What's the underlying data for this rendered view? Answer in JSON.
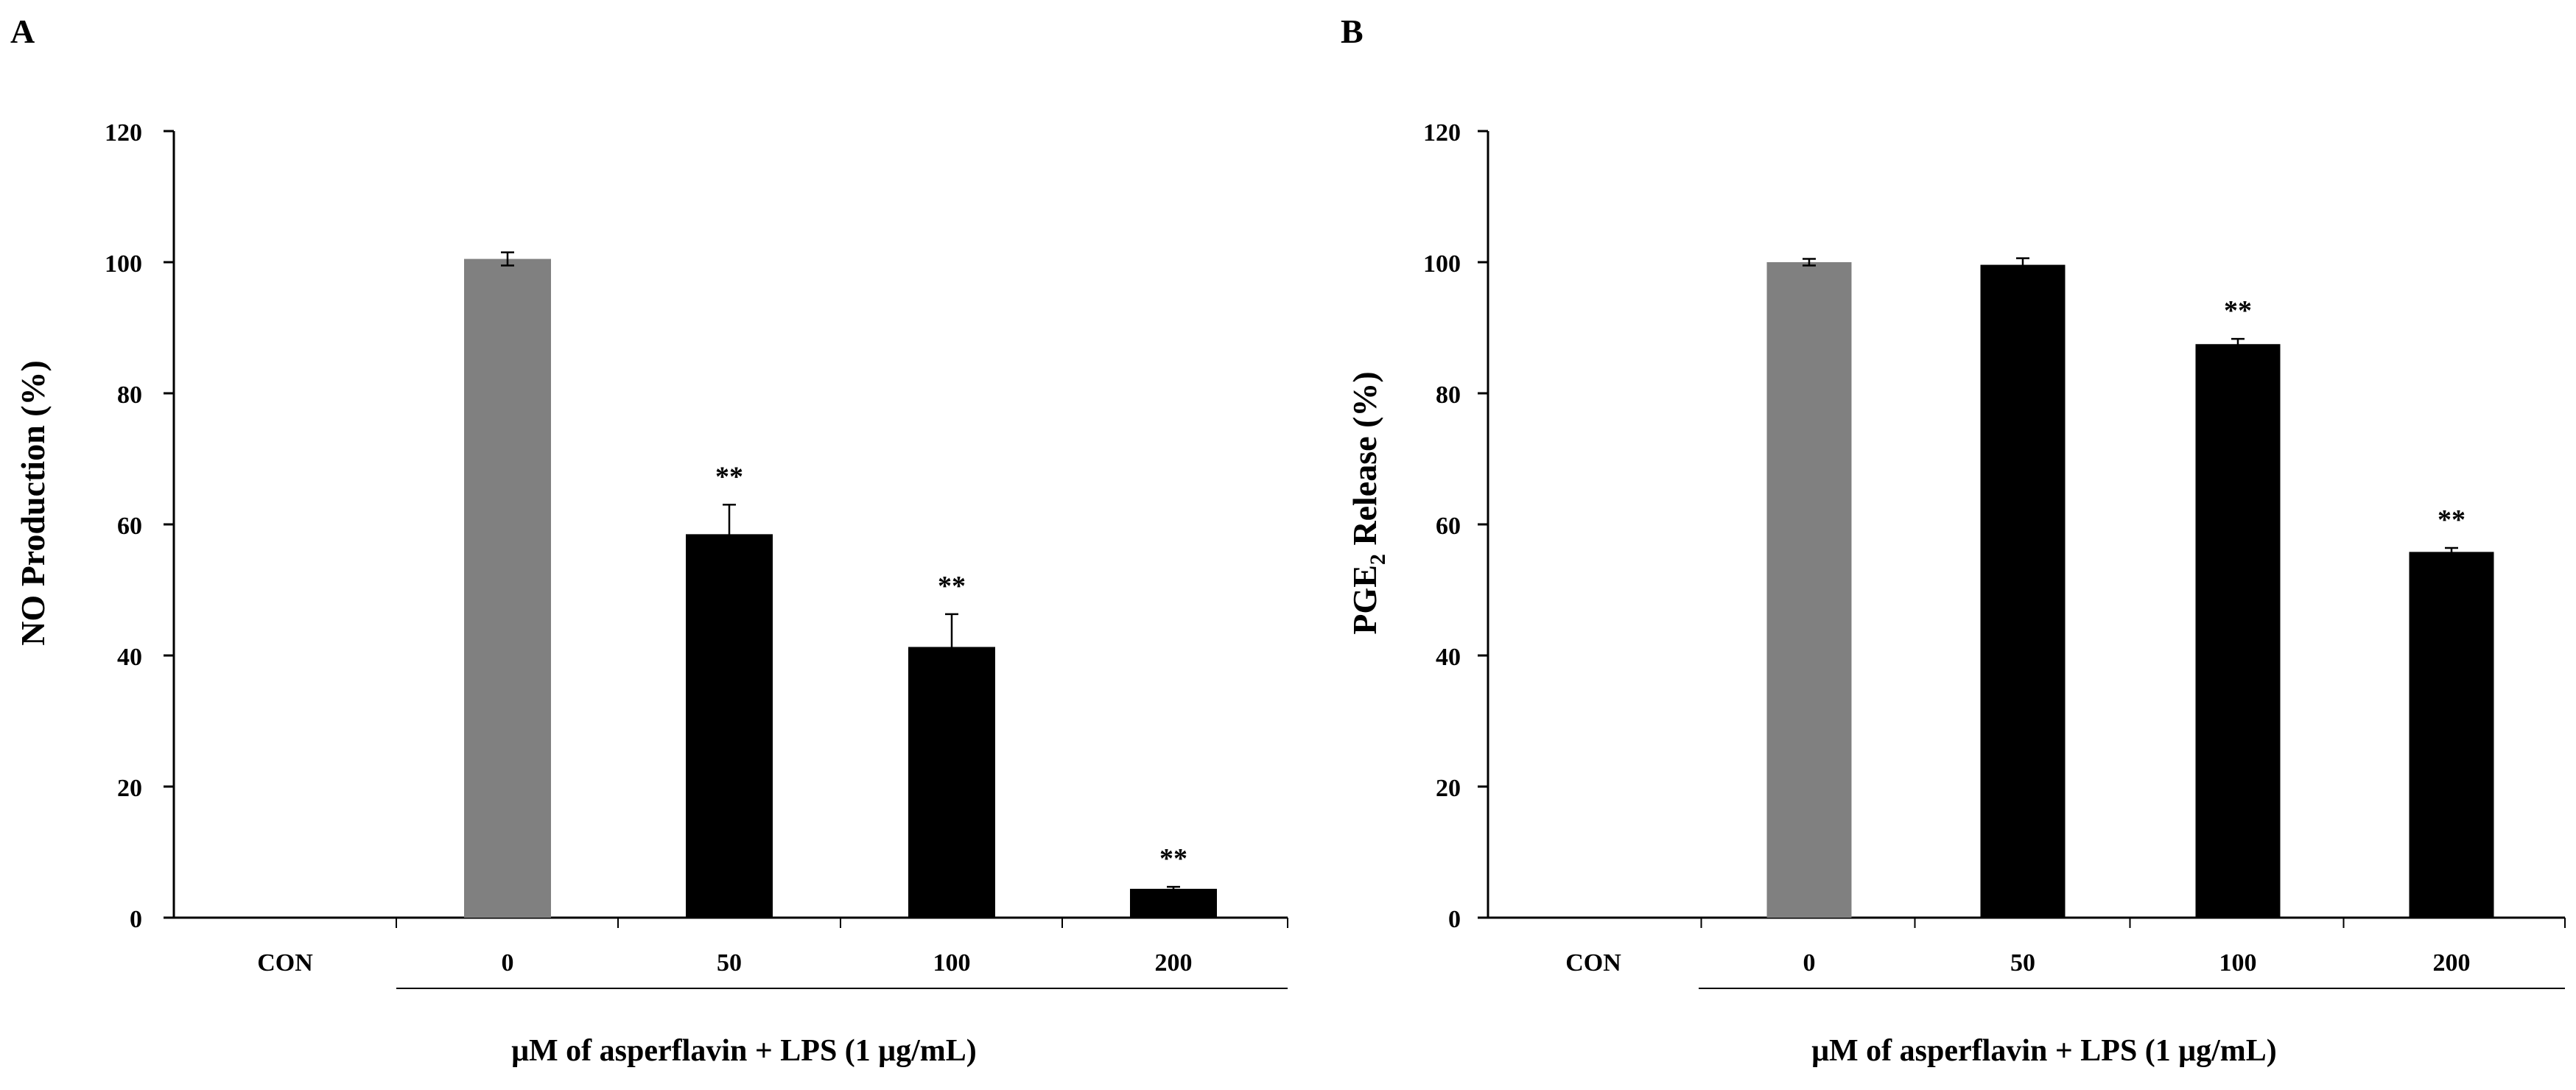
{
  "chart_data": [
    {
      "type": "bar",
      "panel": "A",
      "categories": [
        "CON",
        "0",
        "50",
        "100",
        "200"
      ],
      "values": [
        0,
        100.5,
        58.5,
        41.3,
        4.4
      ],
      "errors": [
        0,
        1.0,
        4.5,
        5.0,
        0.3
      ],
      "bar_colors": [
        "#808080",
        "#808080",
        "#000000",
        "#000000",
        "#000000"
      ],
      "significance": [
        "",
        "",
        "**",
        "**",
        "**"
      ],
      "ylabel": "NO Production (%)",
      "xlabel": "μM of asperflavin + LPS (1 μg/mL)",
      "ylim": [
        0,
        120
      ],
      "yticks": [
        0,
        20,
        40,
        60,
        80,
        100,
        120
      ],
      "ytick_labels": [
        "0",
        "20",
        "40",
        "60",
        "80",
        "100",
        "120"
      ]
    },
    {
      "type": "bar",
      "panel": "B",
      "categories": [
        "CON",
        "0",
        "50",
        "100",
        "200"
      ],
      "values": [
        0,
        100.0,
        99.6,
        87.5,
        55.8
      ],
      "errors": [
        0,
        0.5,
        1.0,
        0.8,
        0.6
      ],
      "bar_colors": [
        "#808080",
        "#808080",
        "#000000",
        "#000000",
        "#000000"
      ],
      "significance": [
        "",
        "",
        "",
        "**",
        "**"
      ],
      "ylabel_main": "PGE",
      "ylabel_sub": "2",
      "ylabel_rest": " Release (%)",
      "xlabel": "μM of asperflavin + LPS (1 μg/mL)",
      "ylim": [
        0,
        120
      ],
      "yticks": [
        0,
        20,
        40,
        60,
        80,
        100,
        120
      ],
      "ytick_labels": [
        "0",
        "20",
        "40",
        "60",
        "80",
        "100",
        "120"
      ]
    }
  ]
}
